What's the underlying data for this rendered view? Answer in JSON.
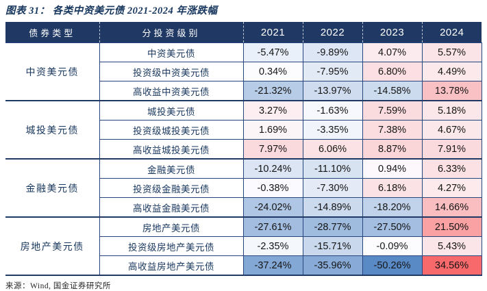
{
  "title": "图表 31： 各类中资美元债 2021-2024 年涨跌幅",
  "source": "来源：Wind, 国金证券研究所",
  "colors": {
    "header_bg": "#1F3864",
    "header_text": "#FFFFFF",
    "label_text": "#17365D",
    "value_text": "#141414",
    "grid_border": "#24457C",
    "group_border": "#1F3864",
    "scale_min_color": "#5A8AC6",
    "scale_mid_color": "#FCFCFF",
    "scale_max_color": "#F8696B"
  },
  "chart_data": {
    "type": "heatmap",
    "title": "图表 31： 各类中资美元债 2021-2024 年涨跌幅",
    "unit": "%",
    "columns": [
      "债券类型",
      "分投资级别",
      "2021",
      "2022",
      "2023",
      "2024"
    ],
    "color_scale": {
      "min": -50.26,
      "mid": 0,
      "max": 34.56
    },
    "groups": [
      {
        "category": "中资美元债",
        "rows": [
          {
            "label": "中资美元债",
            "values": [
              -5.47,
              -9.89,
              4.07,
              5.57
            ]
          },
          {
            "label": "投资级中资美元债",
            "values": [
              0.34,
              -7.95,
              6.8,
              4.49
            ]
          },
          {
            "label": "高收益中资美元债",
            "values": [
              -21.32,
              -13.97,
              -14.58,
              13.78
            ]
          }
        ]
      },
      {
        "category": "城投美元债",
        "rows": [
          {
            "label": "城投美元债",
            "values": [
              3.27,
              -1.63,
              7.59,
              5.18
            ]
          },
          {
            "label": "投资级城投美元债",
            "values": [
              1.69,
              -3.35,
              7.38,
              4.67
            ]
          },
          {
            "label": "高收益城投美元债",
            "values": [
              7.97,
              6.06,
              8.87,
              7.91
            ]
          }
        ]
      },
      {
        "category": "金融美元债",
        "rows": [
          {
            "label": "金融美元债",
            "values": [
              -10.24,
              -11.1,
              0.94,
              6.33
            ]
          },
          {
            "label": "投资级金融美元债",
            "values": [
              -0.38,
              -7.3,
              6.18,
              4.27
            ]
          },
          {
            "label": "高收益金融美元债",
            "values": [
              -24.02,
              -14.89,
              -18.2,
              14.66
            ]
          }
        ]
      },
      {
        "category": "房地产美元债",
        "rows": [
          {
            "label": "房地产美元债",
            "values": [
              -27.61,
              -28.77,
              -27.5,
              21.5
            ]
          },
          {
            "label": "投资级房地产美元债",
            "values": [
              -2.35,
              -15.71,
              -0.09,
              5.43
            ]
          },
          {
            "label": "高收益房地产美元债",
            "values": [
              -37.24,
              -35.96,
              -50.26,
              34.56
            ]
          }
        ]
      }
    ]
  }
}
